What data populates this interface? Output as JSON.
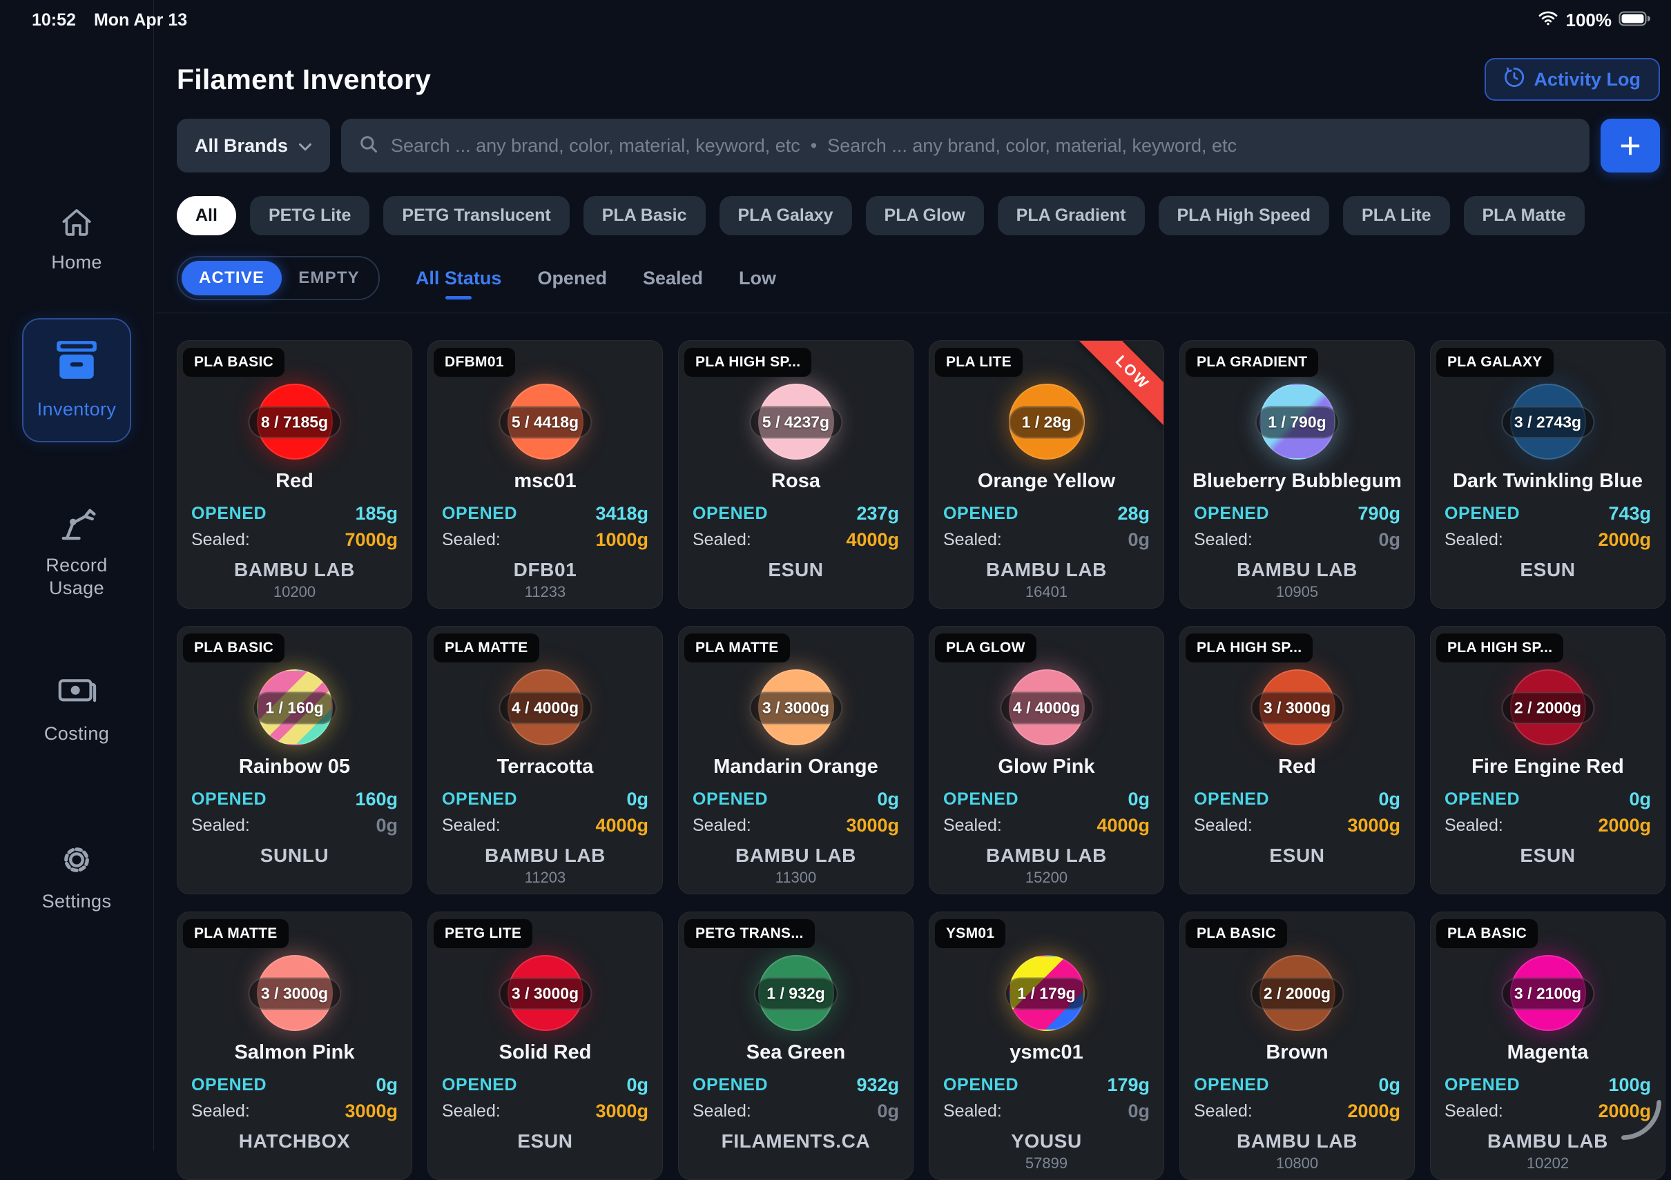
{
  "status_bar": {
    "time": "10:52",
    "date": "Mon Apr 13",
    "battery_percent": "100%"
  },
  "header": {
    "title": "Filament Inventory",
    "activity_log_label": "Activity Log"
  },
  "toolbar": {
    "brand_filter_label": "All Brands",
    "search_placeholder": "Search ... any brand, color, material, keyword, etc  •  Search ... any brand, color, material, keyword, etc",
    "add_button_label": "+"
  },
  "material_filters": {
    "selected": "All",
    "items": [
      "All",
      "PETG Lite",
      "PETG Translucent",
      "PLA Basic",
      "PLA Galaxy",
      "PLA Glow",
      "PLA Gradient",
      "PLA High Speed",
      "PLA Lite",
      "PLA Matte"
    ]
  },
  "status_filters": {
    "toggle": {
      "active_label": "ACTIVE",
      "empty_label": "EMPTY",
      "selected": "ACTIVE"
    },
    "links": [
      {
        "label": "All Status",
        "selected": true
      },
      {
        "label": "Opened",
        "selected": false
      },
      {
        "label": "Sealed",
        "selected": false
      },
      {
        "label": "Low",
        "selected": false
      }
    ]
  },
  "sidebar": {
    "items": [
      {
        "label": "Home",
        "icon": "home-icon",
        "selected": false
      },
      {
        "label": "Inventory",
        "icon": "inventory-box-icon",
        "selected": true
      },
      {
        "label": "Record Usage",
        "icon": "robot-arm-icon",
        "selected": false
      },
      {
        "label": "Costing",
        "icon": "banknote-icon",
        "selected": false
      },
      {
        "label": "Settings",
        "icon": "gear-icon",
        "selected": false
      }
    ]
  },
  "labels": {
    "opened": "OPENED",
    "sealed": "Sealed:",
    "low_badge": "LOW"
  },
  "colors": {
    "accent_blue": "#2e6bf0",
    "cyan": "#5fe0f0",
    "amber": "#f5ad1d",
    "low_red": "#f2453d",
    "card_bg": "#1d2025",
    "page_bg": "#0b101b"
  },
  "cards": [
    {
      "material": "PLA BASIC",
      "count": "8 / 7185g",
      "name": "Red",
      "opened": "185g",
      "sealed": "7000g",
      "brand": "BAMBU LAB",
      "code": "10200",
      "low": false,
      "circle": {
        "color": "#ff1212"
      }
    },
    {
      "material": "DFBM01",
      "count": "5 / 4418g",
      "name": "msc01",
      "opened": "3418g",
      "sealed": "1000g",
      "brand": "DFB01",
      "code": "11233",
      "low": false,
      "circle": {
        "color": "#ff7046"
      }
    },
    {
      "material": "PLA HIGH SP...",
      "count": "5 / 4237g",
      "name": "Rosa",
      "opened": "237g",
      "sealed": "4000g",
      "brand": "ESUN",
      "code": "",
      "low": false,
      "circle": {
        "color": "#f8c3cf"
      }
    },
    {
      "material": "PLA LITE",
      "count": "1 / 28g",
      "name": "Orange Yellow",
      "opened": "28g",
      "sealed": "0g",
      "brand": "BAMBU LAB",
      "code": "16401",
      "low": true,
      "circle": {
        "color": "#f28c16"
      }
    },
    {
      "material": "PLA GRADIENT",
      "count": "1 / 790g",
      "name": "Blueberry Bubblegum",
      "opened": "790g",
      "sealed": "0g",
      "brand": "BAMBU LAB",
      "code": "10905",
      "low": false,
      "circle": {
        "gradient": "linear-gradient(135deg,#82d8f4 0%,#82d8f4 46%,#8d7cf0 54%,#8d7cf0 100%)",
        "glow": "#8fc9ef"
      }
    },
    {
      "material": "PLA GALAXY",
      "count": "3 / 2743g",
      "name": "Dark Twinkling Blue",
      "opened": "743g",
      "sealed": "2000g",
      "brand": "ESUN",
      "code": "",
      "low": false,
      "circle": {
        "color": "#1b4e7d"
      }
    },
    {
      "material": "PLA BASIC",
      "count": "1 / 160g",
      "name": "Rainbow 05",
      "opened": "160g",
      "sealed": "0g",
      "brand": "SUNLU",
      "code": "",
      "low": false,
      "circle": {
        "gradient": "linear-gradient(135deg,#ff9315 0 14%,#ef6fa8 14% 34%,#efe27b 34% 52%,#ef6fa8 52% 62%,#efe27b 62% 76%,#64e3c1 76% 88%,#efe27b 88% 100%)",
        "glow": "#f4c84a"
      }
    },
    {
      "material": "PLA MATTE",
      "count": "4 / 4000g",
      "name": "Terracotta",
      "opened": "0g",
      "sealed": "4000g",
      "brand": "BAMBU LAB",
      "code": "11203",
      "low": false,
      "circle": {
        "color": "#ad5530"
      }
    },
    {
      "material": "PLA MATTE",
      "count": "3 / 3000g",
      "name": "Mandarin Orange",
      "opened": "0g",
      "sealed": "3000g",
      "brand": "BAMBU LAB",
      "code": "11300",
      "low": false,
      "circle": {
        "color": "#ffb172"
      }
    },
    {
      "material": "PLA GLOW",
      "count": "4 / 4000g",
      "name": "Glow Pink",
      "opened": "0g",
      "sealed": "4000g",
      "brand": "BAMBU LAB",
      "code": "15200",
      "low": false,
      "circle": {
        "color": "#f0879f"
      }
    },
    {
      "material": "PLA HIGH SP...",
      "count": "3 / 3000g",
      "name": "Red",
      "opened": "0g",
      "sealed": "3000g",
      "brand": "ESUN",
      "code": "",
      "low": false,
      "circle": {
        "color": "#d94e2b"
      }
    },
    {
      "material": "PLA HIGH SP...",
      "count": "2 / 2000g",
      "name": "Fire Engine Red",
      "opened": "0g",
      "sealed": "2000g",
      "brand": "ESUN",
      "code": "",
      "low": false,
      "circle": {
        "color": "#ab0e28"
      }
    },
    {
      "material": "PLA MATTE",
      "count": "3 / 3000g",
      "name": "Salmon Pink",
      "opened": "0g",
      "sealed": "3000g",
      "brand": "HATCHBOX",
      "code": "",
      "low": false,
      "circle": {
        "color": "#fb8b82"
      }
    },
    {
      "material": "PETG LITE",
      "count": "3 / 3000g",
      "name": "Solid Red",
      "opened": "0g",
      "sealed": "3000g",
      "brand": "ESUN",
      "code": "",
      "low": false,
      "circle": {
        "color": "#e60d2e"
      }
    },
    {
      "material": "PETG TRANS...",
      "count": "1 / 932g",
      "name": "Sea Green",
      "opened": "932g",
      "sealed": "0g",
      "brand": "FILAMENTS.CA",
      "code": "",
      "low": false,
      "circle": {
        "color": "#2f8f5b"
      }
    },
    {
      "material": "YSM01",
      "count": "1 / 179g",
      "name": "ysmc01",
      "opened": "179g",
      "sealed": "0g",
      "brand": "YOUSU",
      "code": "57899",
      "low": false,
      "circle": {
        "gradient": "linear-gradient(135deg,#ff6a1f 0 10%,#f8ef1b 10% 38%,#f5128f 38% 74%,#2e6bff 74% 100%)",
        "glow": "#ffab3d"
      }
    },
    {
      "material": "PLA BASIC",
      "count": "2 / 2000g",
      "name": "Brown",
      "opened": "0g",
      "sealed": "2000g",
      "brand": "BAMBU LAB",
      "code": "10800",
      "low": false,
      "circle": {
        "color": "#9c4e2b"
      }
    },
    {
      "material": "PLA BASIC",
      "count": "3 / 2100g",
      "name": "Magenta",
      "opened": "100g",
      "sealed": "2000g",
      "brand": "BAMBU LAB",
      "code": "10202",
      "low": false,
      "circle": {
        "color": "#f207a0"
      }
    }
  ]
}
